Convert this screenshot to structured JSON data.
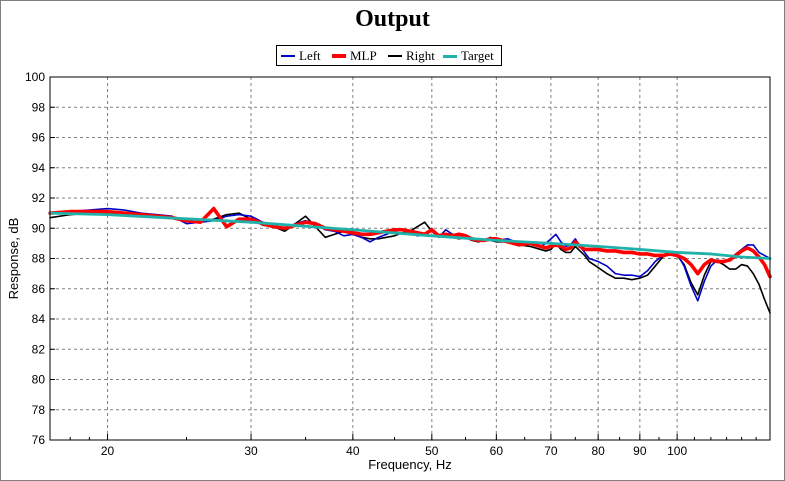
{
  "chart_data": {
    "type": "line",
    "title": "Output",
    "xlabel": "Frequency, Hz",
    "ylabel": "Response, dB",
    "xscale": "log",
    "xlim": [
      17,
      130
    ],
    "ylim": [
      76,
      100
    ],
    "grid": true,
    "legend_position": "top",
    "x_ticks": [
      "20",
      "30",
      "40",
      "50",
      "60",
      "70",
      "80",
      "90",
      "100"
    ],
    "y_ticks": [
      "76",
      "78",
      "80",
      "82",
      "84",
      "86",
      "88",
      "90",
      "92",
      "94",
      "96",
      "98",
      "100"
    ],
    "series": [
      {
        "name": "Left",
        "color": "#0000c8",
        "x": [
          17,
          18,
          19,
          20,
          21,
          22,
          23,
          24,
          25,
          26,
          27,
          28,
          29,
          30,
          31,
          32,
          33,
          34,
          35,
          36,
          37,
          38,
          39,
          40,
          41,
          42,
          43,
          44,
          45,
          46,
          47,
          48,
          49,
          50,
          51,
          52,
          53,
          54,
          55,
          56,
          57,
          58,
          59,
          60,
          62,
          64,
          66,
          68,
          69,
          70,
          71,
          72,
          73,
          74,
          75,
          76,
          77,
          78,
          80,
          82,
          84,
          86,
          88,
          90,
          92,
          94,
          96,
          98,
          100,
          102,
          104,
          106,
          108,
          110,
          112,
          114,
          116,
          118,
          120,
          122,
          124,
          126,
          128,
          130
        ],
        "values": [
          91.0,
          91.1,
          91.2,
          91.3,
          91.2,
          91.0,
          90.9,
          90.8,
          90.3,
          90.4,
          90.5,
          90.8,
          90.9,
          90.8,
          90.4,
          90.2,
          90.0,
          90.3,
          90.5,
          90.3,
          89.9,
          89.8,
          89.5,
          89.6,
          89.4,
          89.1,
          89.4,
          89.6,
          89.8,
          89.9,
          89.7,
          89.5,
          89.6,
          89.8,
          89.4,
          89.9,
          89.6,
          89.4,
          89.5,
          89.3,
          89.2,
          89.2,
          89.4,
          89.2,
          89.3,
          89.0,
          89.1,
          88.8,
          89.0,
          89.3,
          89.6,
          89.1,
          88.8,
          88.9,
          89.3,
          88.8,
          88.4,
          88.0,
          87.8,
          87.5,
          87.0,
          86.9,
          86.9,
          86.8,
          87.2,
          87.8,
          88.2,
          88.4,
          88.3,
          87.5,
          86.2,
          85.2,
          86.5,
          87.5,
          87.9,
          87.8,
          87.9,
          88.3,
          88.6,
          88.9,
          88.9,
          88.4,
          88.2,
          88.0
        ]
      },
      {
        "name": "MLP",
        "color": "#ff0000",
        "x": [
          17,
          18,
          19,
          20,
          21,
          22,
          23,
          24,
          25,
          26,
          27,
          28,
          29,
          30,
          31,
          32,
          33,
          34,
          35,
          36,
          37,
          38,
          39,
          40,
          41,
          42,
          43,
          44,
          45,
          46,
          47,
          48,
          49,
          50,
          51,
          52,
          53,
          54,
          55,
          56,
          57,
          58,
          59,
          60,
          62,
          64,
          66,
          68,
          69,
          70,
          71,
          72,
          73,
          74,
          75,
          76,
          77,
          78,
          80,
          82,
          84,
          86,
          88,
          90,
          92,
          94,
          96,
          98,
          100,
          102,
          104,
          106,
          108,
          110,
          112,
          114,
          116,
          118,
          120,
          122,
          124,
          126,
          128,
          130
        ],
        "values": [
          91.0,
          91.1,
          91.1,
          91.1,
          91.0,
          90.9,
          90.8,
          90.7,
          90.5,
          90.4,
          91.3,
          90.1,
          90.6,
          90.6,
          90.3,
          90.1,
          90.0,
          90.2,
          90.4,
          90.3,
          90.0,
          89.9,
          89.8,
          89.7,
          89.6,
          89.6,
          89.7,
          89.8,
          89.9,
          89.9,
          89.8,
          89.7,
          89.6,
          89.9,
          89.5,
          89.6,
          89.5,
          89.6,
          89.5,
          89.3,
          89.2,
          89.2,
          89.3,
          89.3,
          89.1,
          88.9,
          89.0,
          88.8,
          88.7,
          88.8,
          88.9,
          88.8,
          88.6,
          88.7,
          89.1,
          88.8,
          88.6,
          88.6,
          88.6,
          88.5,
          88.5,
          88.4,
          88.4,
          88.3,
          88.3,
          88.2,
          88.2,
          88.3,
          88.2,
          88.0,
          87.6,
          87.0,
          87.6,
          87.9,
          87.8,
          87.8,
          87.9,
          88.2,
          88.5,
          88.7,
          88.5,
          88.1,
          87.6,
          86.8
        ]
      },
      {
        "name": "Right",
        "color": "#000000",
        "x": [
          17,
          18,
          19,
          20,
          21,
          22,
          23,
          24,
          25,
          26,
          27,
          28,
          29,
          30,
          31,
          32,
          33,
          34,
          35,
          36,
          37,
          38,
          39,
          40,
          41,
          42,
          43,
          44,
          45,
          46,
          47,
          48,
          49,
          50,
          51,
          52,
          53,
          54,
          55,
          56,
          57,
          58,
          59,
          60,
          62,
          64,
          66,
          68,
          69,
          70,
          71,
          72,
          73,
          74,
          75,
          76,
          77,
          78,
          80,
          82,
          84,
          86,
          88,
          90,
          92,
          94,
          96,
          98,
          100,
          102,
          104,
          106,
          108,
          110,
          112,
          114,
          116,
          118,
          120,
          122,
          124,
          126,
          128,
          130
        ],
        "values": [
          90.7,
          90.9,
          91.0,
          91.0,
          90.9,
          90.8,
          90.7,
          90.7,
          90.6,
          90.5,
          90.6,
          90.9,
          91.0,
          90.6,
          90.2,
          90.1,
          89.8,
          90.3,
          90.8,
          90.1,
          89.4,
          89.6,
          89.8,
          89.6,
          89.4,
          89.3,
          89.3,
          89.4,
          89.5,
          89.7,
          89.8,
          90.1,
          90.4,
          89.8,
          89.5,
          89.6,
          89.4,
          89.3,
          89.4,
          89.2,
          89.1,
          89.2,
          89.2,
          89.1,
          89.1,
          88.9,
          88.8,
          88.6,
          88.5,
          88.6,
          89.0,
          88.6,
          88.4,
          88.4,
          88.8,
          88.5,
          88.2,
          87.8,
          87.4,
          87.0,
          86.7,
          86.7,
          86.6,
          86.7,
          86.9,
          87.5,
          88.1,
          88.3,
          88.2,
          87.6,
          86.4,
          85.6,
          86.9,
          87.8,
          87.8,
          87.6,
          87.3,
          87.3,
          87.6,
          87.5,
          87.0,
          86.3,
          85.3,
          84.4
        ]
      },
      {
        "name": "Target",
        "color": "#20b2aa",
        "x": [
          17,
          20,
          30,
          40,
          50,
          60,
          70,
          80,
          90,
          100,
          110,
          120,
          130
        ],
        "values": [
          91.0,
          90.9,
          90.4,
          89.9,
          89.5,
          89.2,
          89.0,
          88.8,
          88.6,
          88.4,
          88.3,
          88.1,
          88.0
        ]
      }
    ]
  }
}
